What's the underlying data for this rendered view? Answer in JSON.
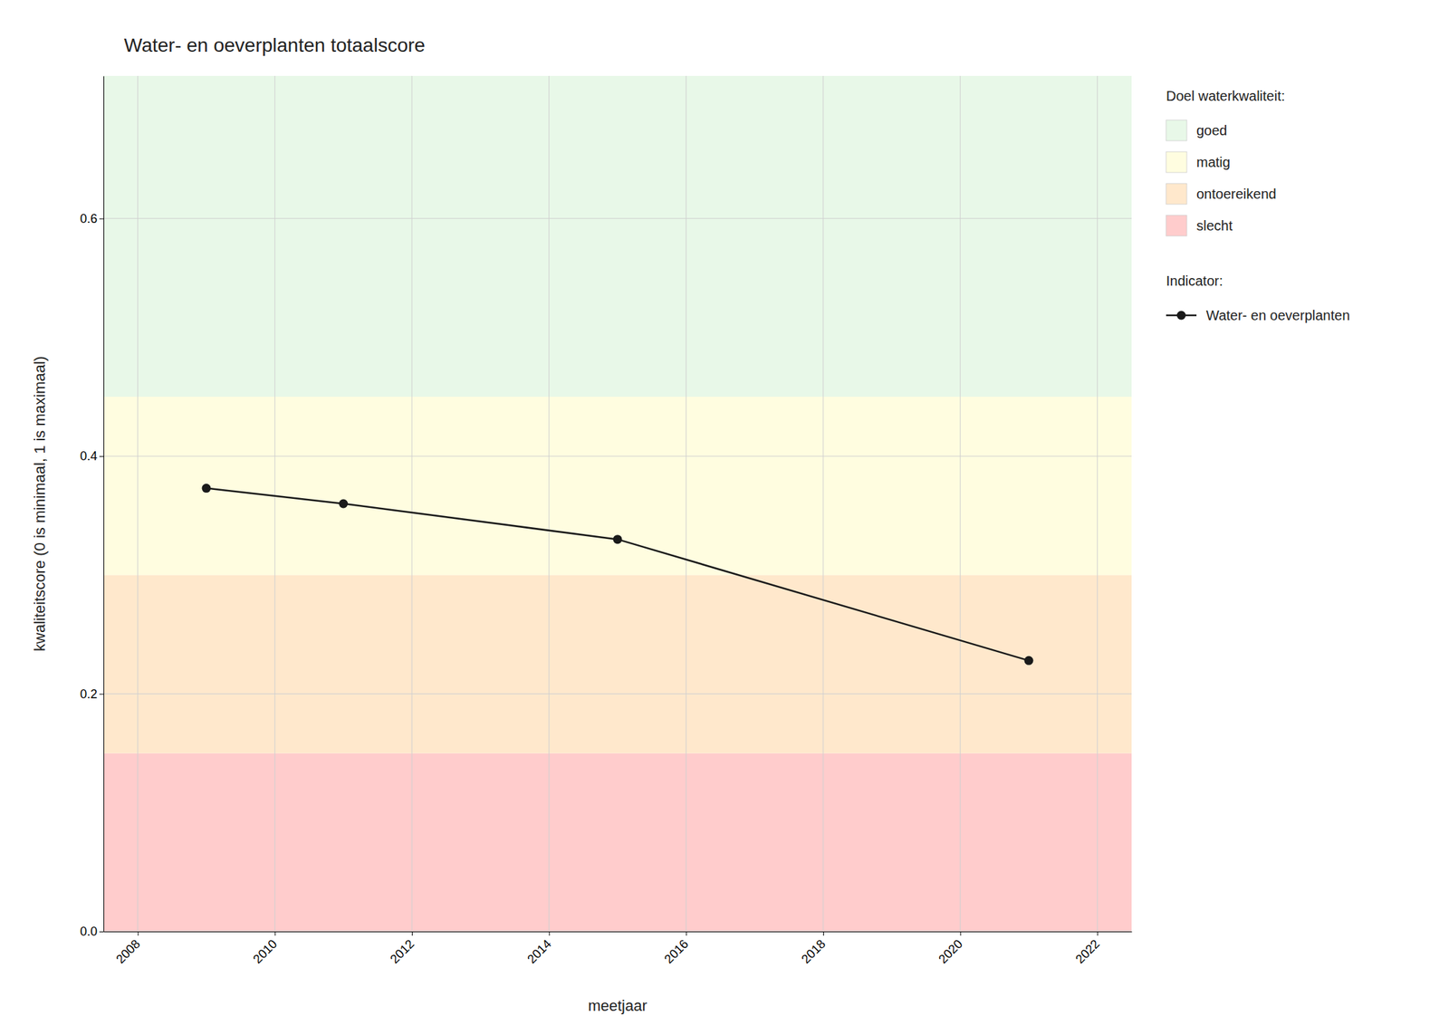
{
  "chart_data": {
    "type": "line",
    "title": "Water- en oeverplanten totaalscore",
    "x_label": "meetjaar",
    "y_label": "kwaliteitscore (0 is minimaal, 1 is maximaal)",
    "x": [
      2009,
      2011,
      2015,
      2021
    ],
    "series": [
      {
        "name": "Water- en oeverplanten",
        "color": "#1a1a1a",
        "marker": "circle",
        "values": [
          0.373,
          0.36,
          0.33,
          0.228
        ]
      }
    ],
    "xlim": [
      2007.5,
      2022.5
    ],
    "ylim": [
      0.0,
      0.72
    ],
    "xticks": [
      2008,
      2010,
      2012,
      2014,
      2016,
      2018,
      2020,
      2022
    ],
    "yticks": [
      {
        "value": 0.0,
        "label": "0.0"
      },
      0.2,
      0.4,
      0.6
    ],
    "zones_title": "Doel waterkwaliteit:",
    "zones": [
      {
        "name": "slecht",
        "ymin": 0.0,
        "ymax": 0.15,
        "color": "#ffcccc"
      },
      {
        "name": "ontoereikend",
        "ymin": 0.15,
        "ymax": 0.3,
        "color": "#ffe8cc"
      },
      {
        "name": "matig",
        "ymin": 0.3,
        "ymax": 0.45,
        "color": "#fffde0"
      },
      {
        "name": "goed",
        "ymin": 0.45,
        "ymax": 0.72,
        "color": "#e8f8e8"
      }
    ],
    "series_title": "Indicator:",
    "grid": true,
    "legend": "right"
  }
}
